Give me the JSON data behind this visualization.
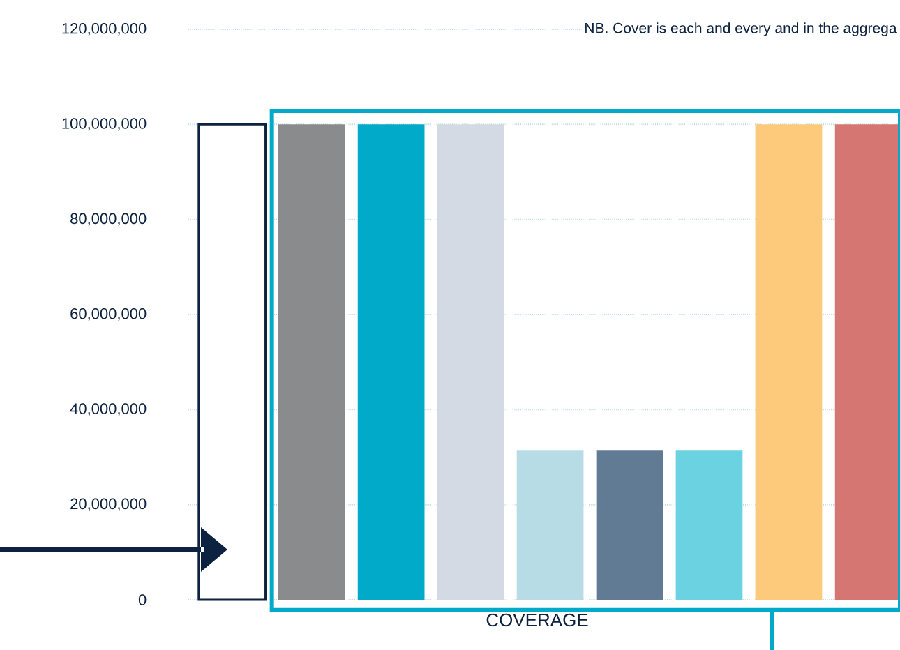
{
  "chart_data": {
    "type": "bar",
    "categories": [
      null,
      null,
      null,
      null,
      null,
      null,
      null,
      null,
      null
    ],
    "values": [
      100000000,
      100000000,
      100000000,
      100000000,
      31500000,
      31500000,
      31500000,
      100000000,
      100000000
    ],
    "colors": [
      "#ffffff",
      "#8a8b8c",
      "#00aac8",
      "#d3dae4",
      "#b8dce6",
      "#627b95",
      "#6ad2e0",
      "#fdc97a",
      "#d57672"
    ],
    "xlabel": "COVERAGE",
    "ylim": [
      0,
      120000000
    ],
    "yticks": [
      {
        "value": 0,
        "label": "0"
      },
      {
        "value": 20000000,
        "label": "20,000,000"
      },
      {
        "value": 40000000,
        "label": "40,000,000"
      },
      {
        "value": 60000000,
        "label": "60,000,000"
      },
      {
        "value": 80000000,
        "label": "80,000,000"
      },
      {
        "value": 100000000,
        "label": "100,000,000"
      },
      {
        "value": 120000000,
        "label": "120,000,000"
      }
    ],
    "grid": "y",
    "annotations": [
      "NB.  Cover is each and every and in the aggrega"
    ]
  }
}
